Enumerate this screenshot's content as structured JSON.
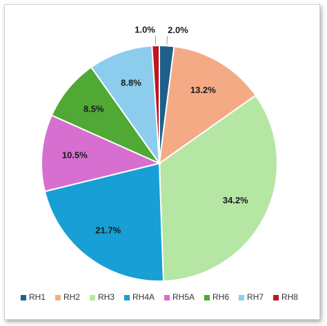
{
  "chart_data": {
    "type": "pie",
    "categories": [
      "RH1",
      "RH2",
      "RH3",
      "RH4A",
      "RH5A",
      "RH6",
      "RH7",
      "RH8"
    ],
    "values": [
      2.0,
      13.2,
      34.2,
      21.7,
      10.5,
      8.5,
      8.8,
      1.0
    ],
    "value_labels": [
      "2.0%",
      "13.2%",
      "34.2%",
      "21.7%",
      "10.5%",
      "8.5%",
      "8.8%",
      "1.0%"
    ],
    "colors": [
      "#1f5f8b",
      "#f4aa84",
      "#b6e6a4",
      "#189fd5",
      "#d66fd0",
      "#4fa934",
      "#8ccdee",
      "#c0161c"
    ],
    "legend": "bottom"
  }
}
